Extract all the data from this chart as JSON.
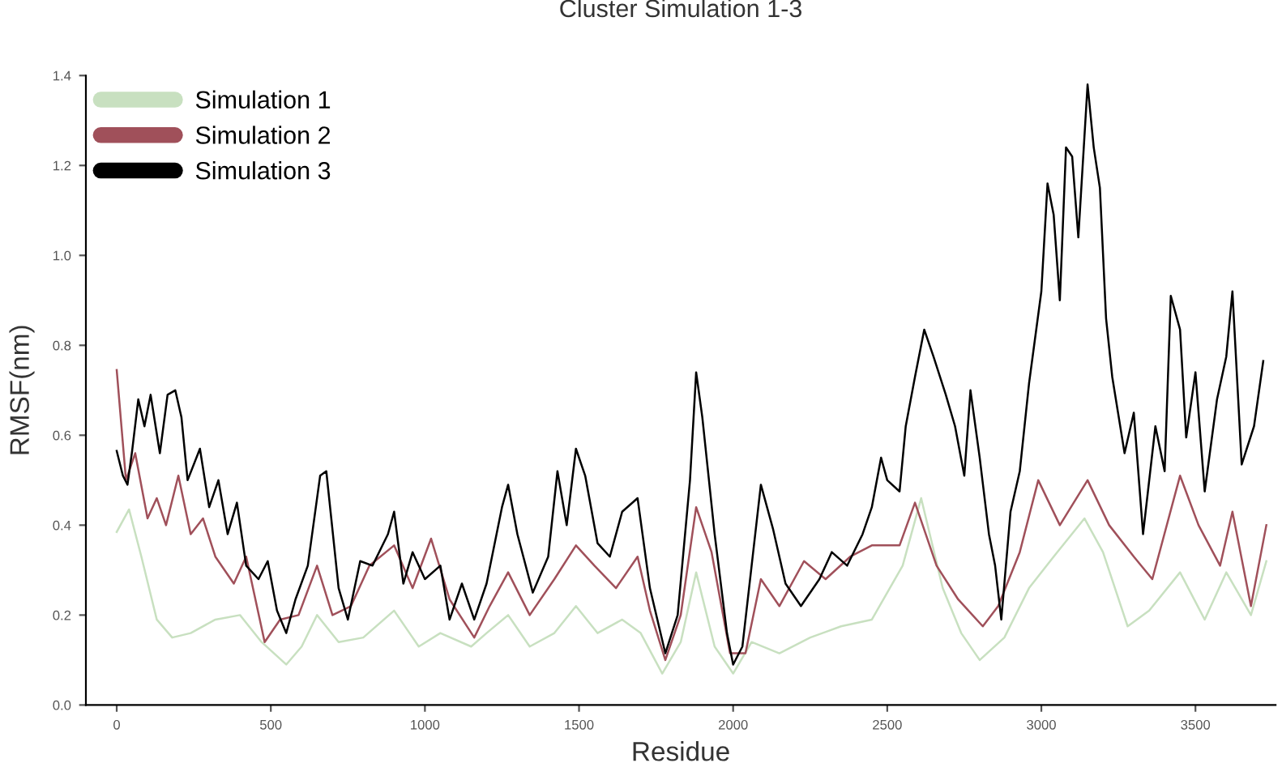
{
  "chart_data": {
    "type": "line",
    "title": "Cluster Simulation 1-3",
    "xlabel": "Residue",
    "ylabel": "RMSF(nm)",
    "xlim": [
      -100,
      3760
    ],
    "xticks": [
      0,
      500,
      1000,
      1500,
      2000,
      2500,
      3000,
      3500
    ],
    "ylim": [
      0,
      1.4
    ],
    "yticks": [
      {
        "value": 0,
        "label": "0.0"
      },
      0.2,
      0.4,
      0.6,
      0.8,
      {
        "value": 1,
        "label": "1.0"
      },
      1.2,
      1.4
    ],
    "grid": false,
    "legend": "top left",
    "marker": "none",
    "line_style": "solid",
    "series": [
      {
        "name": "Simulation 1",
        "color": "#c8e0c0",
        "x": [
          0,
          40,
          80,
          130,
          180,
          240,
          320,
          400,
          470,
          550,
          600,
          650,
          720,
          800,
          900,
          980,
          1050,
          1150,
          1200,
          1270,
          1340,
          1420,
          1490,
          1560,
          1640,
          1700,
          1770,
          1830,
          1880,
          1940,
          2000,
          2060,
          2150,
          2250,
          2350,
          2450,
          2550,
          2610,
          2680,
          2740,
          2800,
          2880,
          2960,
          3040,
          3140,
          3200,
          3280,
          3350,
          3450,
          3530,
          3600,
          3680,
          3730
        ],
        "values": [
          0.385,
          0.435,
          0.33,
          0.19,
          0.15,
          0.16,
          0.19,
          0.2,
          0.14,
          0.09,
          0.13,
          0.2,
          0.14,
          0.15,
          0.21,
          0.13,
          0.16,
          0.13,
          0.16,
          0.2,
          0.13,
          0.16,
          0.22,
          0.16,
          0.19,
          0.16,
          0.07,
          0.14,
          0.295,
          0.13,
          0.07,
          0.14,
          0.115,
          0.15,
          0.175,
          0.19,
          0.31,
          0.46,
          0.26,
          0.16,
          0.1,
          0.15,
          0.26,
          0.33,
          0.415,
          0.34,
          0.175,
          0.21,
          0.295,
          0.19,
          0.295,
          0.2,
          0.32
        ]
      },
      {
        "name": "Simulation 2",
        "color": "#a0505a",
        "x": [
          0,
          30,
          60,
          100,
          130,
          160,
          200,
          240,
          280,
          320,
          380,
          420,
          480,
          530,
          590,
          650,
          700,
          760,
          820,
          900,
          960,
          1020,
          1080,
          1160,
          1210,
          1270,
          1340,
          1420,
          1490,
          1550,
          1620,
          1690,
          1730,
          1780,
          1830,
          1880,
          1930,
          1990,
          2040,
          2090,
          2150,
          2230,
          2300,
          2380,
          2450,
          2540,
          2590,
          2660,
          2730,
          2810,
          2860,
          2930,
          2990,
          3060,
          3150,
          3220,
          3300,
          3360,
          3450,
          3510,
          3580,
          3620,
          3680,
          3730
        ],
        "values": [
          0.745,
          0.5,
          0.56,
          0.415,
          0.46,
          0.4,
          0.51,
          0.38,
          0.415,
          0.33,
          0.27,
          0.33,
          0.14,
          0.19,
          0.2,
          0.31,
          0.2,
          0.22,
          0.31,
          0.355,
          0.26,
          0.37,
          0.235,
          0.15,
          0.22,
          0.295,
          0.2,
          0.28,
          0.355,
          0.31,
          0.26,
          0.33,
          0.21,
          0.1,
          0.2,
          0.44,
          0.34,
          0.115,
          0.115,
          0.28,
          0.22,
          0.32,
          0.28,
          0.33,
          0.355,
          0.355,
          0.45,
          0.31,
          0.235,
          0.175,
          0.22,
          0.34,
          0.5,
          0.4,
          0.5,
          0.4,
          0.33,
          0.28,
          0.51,
          0.4,
          0.31,
          0.43,
          0.22,
          0.4
        ]
      },
      {
        "name": "Simulation 3",
        "color": "#000000",
        "x": [
          0,
          20,
          35,
          50,
          70,
          90,
          110,
          140,
          165,
          190,
          210,
          230,
          270,
          300,
          330,
          360,
          390,
          420,
          460,
          490,
          520,
          550,
          580,
          620,
          660,
          680,
          720,
          750,
          790,
          830,
          880,
          900,
          930,
          960,
          1000,
          1050,
          1080,
          1120,
          1160,
          1200,
          1250,
          1270,
          1300,
          1350,
          1400,
          1430,
          1460,
          1490,
          1520,
          1560,
          1600,
          1640,
          1690,
          1730,
          1780,
          1820,
          1860,
          1880,
          1900,
          1940,
          1980,
          2000,
          2030,
          2060,
          2090,
          2130,
          2170,
          2220,
          2280,
          2320,
          2370,
          2420,
          2450,
          2480,
          2500,
          2540,
          2560,
          2590,
          2620,
          2650,
          2690,
          2720,
          2750,
          2770,
          2800,
          2830,
          2850,
          2870,
          2900,
          2930,
          2960,
          3000,
          3020,
          3040,
          3060,
          3080,
          3100,
          3120,
          3150,
          3170,
          3190,
          3210,
          3230,
          3270,
          3300,
          3330,
          3370,
          3400,
          3420,
          3450,
          3470,
          3500,
          3530,
          3570,
          3600,
          3620,
          3650,
          3690,
          3720
        ],
        "values": [
          0.565,
          0.51,
          0.49,
          0.565,
          0.68,
          0.62,
          0.69,
          0.56,
          0.69,
          0.7,
          0.64,
          0.5,
          0.57,
          0.44,
          0.5,
          0.38,
          0.45,
          0.31,
          0.28,
          0.32,
          0.21,
          0.16,
          0.235,
          0.31,
          0.51,
          0.52,
          0.26,
          0.19,
          0.32,
          0.31,
          0.38,
          0.43,
          0.27,
          0.34,
          0.28,
          0.31,
          0.19,
          0.27,
          0.19,
          0.27,
          0.44,
          0.49,
          0.38,
          0.25,
          0.33,
          0.52,
          0.4,
          0.57,
          0.51,
          0.36,
          0.33,
          0.43,
          0.46,
          0.26,
          0.115,
          0.2,
          0.5,
          0.74,
          0.64,
          0.38,
          0.16,
          0.09,
          0.13,
          0.31,
          0.49,
          0.39,
          0.27,
          0.22,
          0.28,
          0.34,
          0.31,
          0.38,
          0.44,
          0.55,
          0.5,
          0.475,
          0.62,
          0.73,
          0.835,
          0.775,
          0.69,
          0.62,
          0.51,
          0.7,
          0.55,
          0.38,
          0.31,
          0.19,
          0.43,
          0.52,
          0.715,
          0.92,
          1.16,
          1.09,
          0.9,
          1.24,
          1.22,
          1.04,
          1.38,
          1.24,
          1.15,
          0.86,
          0.73,
          0.56,
          0.65,
          0.38,
          0.62,
          0.52,
          0.91,
          0.835,
          0.595,
          0.74,
          0.475,
          0.68,
          0.775,
          0.92,
          0.535,
          0.62,
          0.765
        ]
      }
    ]
  }
}
